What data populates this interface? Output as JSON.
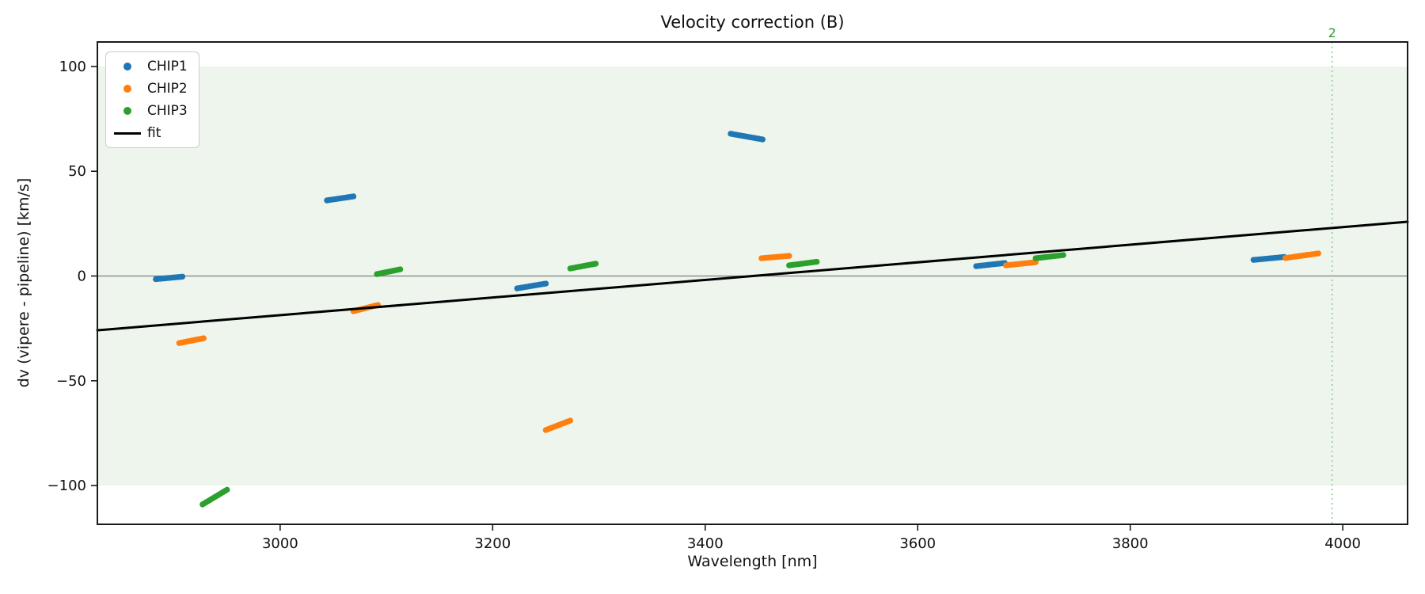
{
  "chart_data": {
    "type": "scatter",
    "title": "Velocity correction (B)",
    "xlabel": "Wavelength [nm]",
    "ylabel": "dv (vipere - pipeline) [km/s]",
    "xlim": [
      2828,
      4061
    ],
    "ylim": [
      -118.5,
      111.7
    ],
    "x_ticks": [
      3000,
      3200,
      3400,
      3600,
      3800,
      4000
    ],
    "x_tick_labels": [
      "3000",
      "3200",
      "3400",
      "3600",
      "3800",
      "4000"
    ],
    "y_ticks": [
      100,
      50,
      0,
      -50,
      -100
    ],
    "y_tick_labels": [
      "100",
      "50",
      "0",
      "−50",
      "−100"
    ],
    "grid": false,
    "band": {
      "ymin": -100,
      "ymax": 100,
      "color": "#edf5ed"
    },
    "zero_line": {
      "y": 0,
      "color": "#7f7f7f"
    },
    "vline": {
      "x": 3990,
      "label": "2",
      "color": "#8fce8f",
      "label_color": "#2ca02c"
    },
    "fit": {
      "label": "fit",
      "color": "#000000",
      "x_start": 2828,
      "y_start": -25.9,
      "x_end": 4061,
      "y_end": 25.9
    },
    "legend": {
      "position": "upper left",
      "entries": [
        "CHIP1",
        "CHIP2",
        "CHIP3",
        "fit"
      ]
    },
    "series": [
      {
        "name": "CHIP1",
        "color": "#1f77b4",
        "segments": [
          {
            "x": [
              2883,
              2908
            ],
            "dv": [
              -1.5,
              -0.3
            ]
          },
          {
            "x": [
              3044,
              3069
            ],
            "dv": [
              36.1,
              38.0
            ]
          },
          {
            "x": [
              3223,
              3250
            ],
            "dv": [
              -5.9,
              -3.6
            ]
          },
          {
            "x": [
              3424,
              3454
            ],
            "dv": [
              67.9,
              65.2
            ]
          },
          {
            "x": [
              3655,
              3682
            ],
            "dv": [
              4.7,
              6.2
            ]
          },
          {
            "x": [
              3916,
              3945
            ],
            "dv": [
              7.7,
              9.1
            ]
          }
        ]
      },
      {
        "name": "CHIP2",
        "color": "#ff7f0e",
        "segments": [
          {
            "x": [
              2905,
              2928
            ],
            "dv": [
              -32.0,
              -29.7
            ]
          },
          {
            "x": [
              3069,
              3092
            ],
            "dv": [
              -16.8,
              -13.8
            ]
          },
          {
            "x": [
              3250,
              3273
            ],
            "dv": [
              -73.5,
              -69.0
            ]
          },
          {
            "x": [
              3453,
              3479
            ],
            "dv": [
              8.5,
              9.6
            ]
          },
          {
            "x": [
              3683,
              3711
            ],
            "dv": [
              5.1,
              6.6
            ]
          },
          {
            "x": [
              3946,
              3977
            ],
            "dv": [
              8.6,
              10.8
            ]
          }
        ]
      },
      {
        "name": "CHIP3",
        "color": "#2ca02c",
        "segments": [
          {
            "x": [
              2927,
              2950
            ],
            "dv": [
              -109.0,
              -102.0
            ]
          },
          {
            "x": [
              3091,
              3113
            ],
            "dv": [
              0.9,
              3.2
            ]
          },
          {
            "x": [
              3273,
              3297
            ],
            "dv": [
              3.6,
              5.9
            ]
          },
          {
            "x": [
              3479,
              3505
            ],
            "dv": [
              5.1,
              6.8
            ]
          },
          {
            "x": [
              3711,
              3737
            ],
            "dv": [
              8.5,
              10.0
            ]
          }
        ]
      }
    ]
  }
}
